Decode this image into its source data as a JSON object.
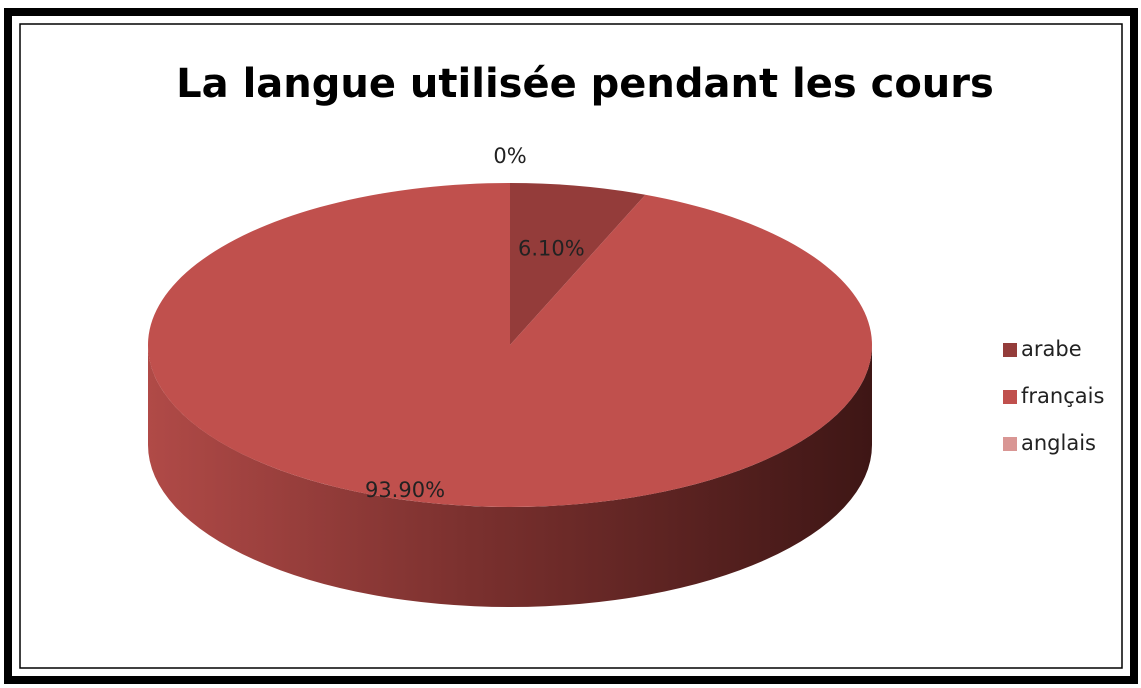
{
  "chart_data": {
    "type": "pie3d",
    "title": "La langue utilisée pendant les cours",
    "categories": [
      "arabe",
      "français",
      "anglais"
    ],
    "values": [
      6.1,
      93.9,
      0
    ],
    "value_labels": [
      "6.10%",
      "93.90%",
      "0%"
    ],
    "colors": [
      "#943c3a",
      "#c0504d",
      "#d99694"
    ],
    "legend": "right"
  }
}
